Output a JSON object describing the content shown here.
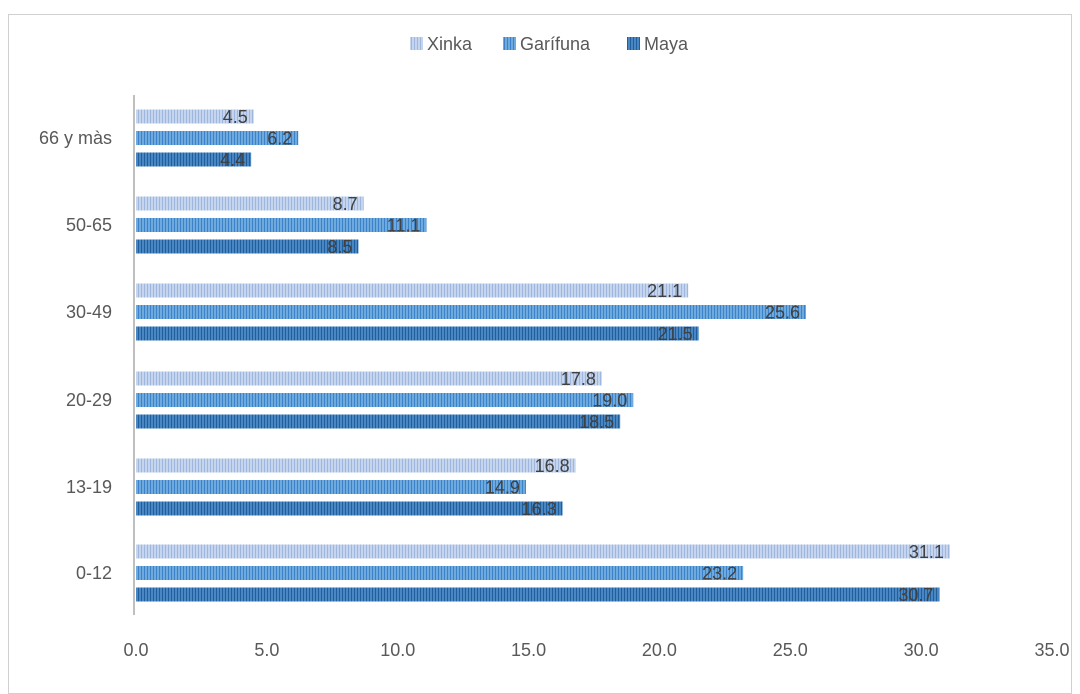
{
  "chart_data": {
    "type": "bar",
    "orientation": "horizontal",
    "title": "",
    "categories": [
      "0-12",
      "13-19",
      "20-29",
      "30-49",
      "50-65",
      "66 y màs"
    ],
    "series": [
      {
        "name": "Xinka",
        "values": [
          31.1,
          16.8,
          17.8,
          21.1,
          8.7,
          4.5
        ],
        "color": "#b4c7e7"
      },
      {
        "name": "Garífuna",
        "values": [
          23.2,
          14.9,
          19.0,
          25.6,
          11.1,
          6.2
        ],
        "color": "#5b9bd5"
      },
      {
        "name": "Maya",
        "values": [
          30.7,
          16.3,
          18.5,
          21.5,
          8.5,
          4.4
        ],
        "color": "#2e75b6"
      }
    ],
    "legend_order": [
      "Xinka",
      "Garífuna",
      "Maya"
    ],
    "legend_position": "top",
    "xlim": [
      0,
      35
    ],
    "x_ticks": [
      "0.0",
      "5.0",
      "10.0",
      "15.0",
      "20.0",
      "25.0",
      "30.0",
      "35.0"
    ],
    "x_tick_values": [
      0,
      5,
      10,
      15,
      20,
      25,
      30,
      35
    ],
    "grid": false,
    "xlabel": "",
    "ylabel": ""
  }
}
